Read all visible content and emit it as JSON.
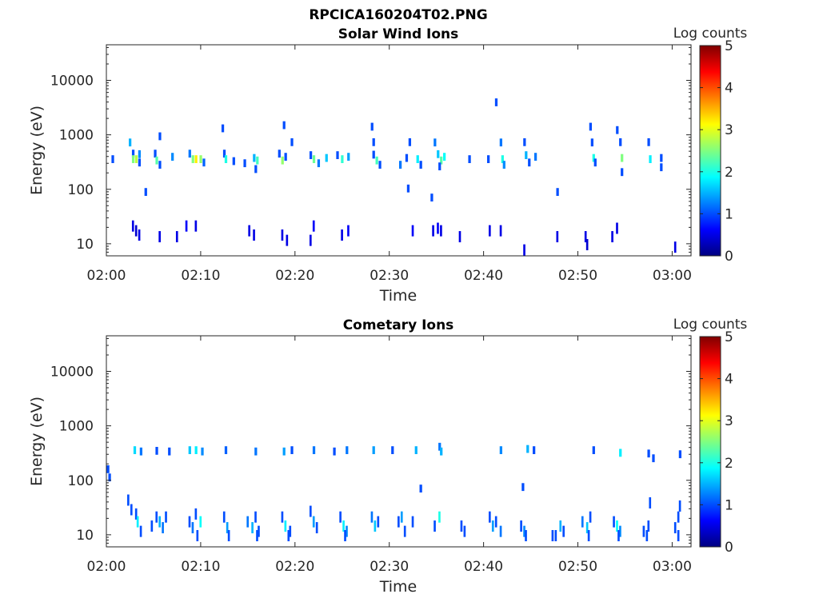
{
  "figure_title": "RPCICA160204T02.PNG",
  "colormap": [
    "#000080",
    "#0000ff",
    "#0080ff",
    "#00ffff",
    "#80ff80",
    "#ffff00",
    "#ff8000",
    "#ff0000",
    "#800000"
  ],
  "chart_data": [
    {
      "type": "heatmap",
      "title": "Solar Wind Ions",
      "xlabel": "Time",
      "ylabel": "Energy (eV)",
      "y_scale": "log",
      "xlim": [
        "02:00",
        "03:02"
      ],
      "ylim": [
        6,
        45000
      ],
      "x_ticks": [
        "02:00",
        "02:10",
        "02:20",
        "02:30",
        "02:40",
        "02:50",
        "03:00"
      ],
      "y_ticks": [
        "10",
        "100",
        "1000",
        "10000"
      ],
      "colorbar": {
        "label": "Log counts",
        "range": [
          0,
          5
        ],
        "ticks": [
          "0",
          "1",
          "2",
          "3",
          "4",
          "5"
        ]
      },
      "cells": [
        [
          "02:00:40",
          380,
          1.0
        ],
        [
          "02:02:30",
          770,
          1.5
        ],
        [
          "02:02:50",
          480,
          1.0
        ],
        [
          "02:02:50",
          380,
          2.5
        ],
        [
          "02:03:10",
          380,
          2.8
        ],
        [
          "02:03:30",
          470,
          1.3
        ],
        [
          "02:03:30",
          330,
          1.0
        ],
        [
          "02:05:10",
          480,
          1.0
        ],
        [
          "02:05:20",
          360,
          2.3
        ],
        [
          "02:05:40",
          300,
          1.0
        ],
        [
          "02:05:40",
          1000,
          1.0
        ],
        [
          "02:07:00",
          420,
          1.3
        ],
        [
          "02:08:50",
          480,
          1.2
        ],
        [
          "02:09:10",
          380,
          2.5
        ],
        [
          "02:09:30",
          380,
          3.2
        ],
        [
          "02:10:00",
          380,
          2.6
        ],
        [
          "02:10:20",
          330,
          1.1
        ],
        [
          "02:12:30",
          480,
          1.0
        ],
        [
          "02:12:40",
          380,
          2.0
        ],
        [
          "02:13:30",
          350,
          1.0
        ],
        [
          "02:14:40",
          320,
          1.0
        ],
        [
          "02:15:40",
          400,
          1.5
        ],
        [
          "02:16:00",
          360,
          2.2
        ],
        [
          "02:15:50",
          250,
          1.0
        ],
        [
          "02:18:20",
          480,
          1.0
        ],
        [
          "02:18:40",
          360,
          2.6
        ],
        [
          "02:19:00",
          420,
          1.0
        ],
        [
          "02:18:50",
          1600,
          1.0
        ],
        [
          "02:19:40",
          780,
          1.0
        ],
        [
          "02:21:40",
          450,
          1.0
        ],
        [
          "02:22:00",
          380,
          2.4
        ],
        [
          "02:22:30",
          320,
          1.2
        ],
        [
          "02:23:20",
          400,
          1.6
        ],
        [
          "02:24:30",
          450,
          1.0
        ],
        [
          "02:25:00",
          380,
          2.1
        ],
        [
          "02:25:40",
          420,
          1.4
        ],
        [
          "02:28:10",
          1500,
          1.0
        ],
        [
          "02:28:20",
          780,
          1.0
        ],
        [
          "02:28:20",
          460,
          1.0
        ],
        [
          "02:28:40",
          360,
          2.2
        ],
        [
          "02:29:00",
          300,
          1.0
        ],
        [
          "02:31:10",
          300,
          1.2
        ],
        [
          "02:31:50",
          400,
          1.0
        ],
        [
          "02:32:10",
          780,
          1.0
        ],
        [
          "02:33:00",
          380,
          1.8
        ],
        [
          "02:33:20",
          300,
          1.0
        ],
        [
          "02:34:50",
          770,
          1.2
        ],
        [
          "02:35:10",
          470,
          1.6
        ],
        [
          "02:35:30",
          360,
          2.3
        ],
        [
          "02:35:50",
          420,
          1.9
        ],
        [
          "02:35:20",
          280,
          1.0
        ],
        [
          "02:38:30",
          380,
          1.0
        ],
        [
          "02:40:30",
          380,
          1.0
        ],
        [
          "02:41:20",
          4200,
          1.0
        ],
        [
          "02:41:50",
          770,
          1.2
        ],
        [
          "02:42:00",
          380,
          2.0
        ],
        [
          "02:42:10",
          300,
          1.3
        ],
        [
          "02:44:20",
          780,
          1.0
        ],
        [
          "02:44:30",
          450,
          1.5
        ],
        [
          "02:44:50",
          330,
          1.0
        ],
        [
          "02:45:30",
          420,
          1.2
        ],
        [
          "02:51:20",
          1500,
          1.0
        ],
        [
          "02:51:30",
          770,
          1.0
        ],
        [
          "02:51:40",
          400,
          2.0
        ],
        [
          "02:51:50",
          330,
          1.0
        ],
        [
          "02:54:10",
          1300,
          1.0
        ],
        [
          "02:54:30",
          780,
          1.0
        ],
        [
          "02:54:40",
          400,
          2.5
        ],
        [
          "02:54:40",
          220,
          1.0
        ],
        [
          "02:57:30",
          780,
          1.0
        ],
        [
          "02:57:40",
          380,
          1.8
        ],
        [
          "02:58:50",
          400,
          1.0
        ],
        [
          "02:58:50",
          270,
          1.0
        ],
        [
          "02:32:00",
          110,
          1.0
        ],
        [
          "02:34:30",
          75,
          1.0
        ],
        [
          "02:04:10",
          95,
          1.0
        ],
        [
          "02:47:50",
          95,
          1.0
        ],
        [
          "02:12:20",
          1400,
          1.0
        ],
        [
          "02:02:50",
          22,
          0.5
        ],
        [
          "02:03:10",
          18,
          0.4
        ],
        [
          "02:03:30",
          15,
          0.5
        ],
        [
          "02:05:40",
          14,
          0.5
        ],
        [
          "02:07:30",
          14,
          0.5
        ],
        [
          "02:08:30",
          22,
          0.6
        ],
        [
          "02:09:30",
          22,
          0.5
        ],
        [
          "02:15:10",
          18,
          0.5
        ],
        [
          "02:15:40",
          15,
          0.5
        ],
        [
          "02:18:40",
          15,
          0.5
        ],
        [
          "02:19:10",
          12,
          0.5
        ],
        [
          "02:21:40",
          12,
          0.5
        ],
        [
          "02:22:00",
          22,
          0.6
        ],
        [
          "02:25:00",
          15,
          0.5
        ],
        [
          "02:25:40",
          18,
          0.6
        ],
        [
          "02:32:30",
          18,
          0.6
        ],
        [
          "02:34:40",
          18,
          0.5
        ],
        [
          "02:35:10",
          20,
          0.6
        ],
        [
          "02:35:30",
          18,
          0.5
        ],
        [
          "02:37:30",
          14,
          0.5
        ],
        [
          "02:40:40",
          18,
          0.5
        ],
        [
          "02:41:50",
          18,
          0.5
        ],
        [
          "02:44:20",
          8,
          0.5
        ],
        [
          "02:47:50",
          14,
          0.5
        ],
        [
          "02:50:50",
          14,
          0.5
        ],
        [
          "02:51:00",
          10,
          0.4
        ],
        [
          "02:53:40",
          14,
          0.5
        ],
        [
          "02:54:10",
          20,
          0.5
        ],
        [
          "03:00:20",
          9,
          0.5
        ]
      ]
    },
    {
      "type": "heatmap",
      "title": "Cometary Ions",
      "xlabel": "Time",
      "ylabel": "Energy (eV)",
      "y_scale": "log",
      "xlim": [
        "02:00",
        "03:02"
      ],
      "ylim": [
        6,
        45000
      ],
      "x_ticks": [
        "02:00",
        "02:10",
        "02:20",
        "02:30",
        "02:40",
        "02:50",
        "03:00"
      ],
      "y_ticks": [
        "10",
        "100",
        "1000",
        "10000"
      ],
      "colorbar": {
        "label": "Log counts",
        "range": [
          0,
          5
        ],
        "ticks": [
          "0",
          "1",
          "2",
          "3",
          "4",
          "5"
        ]
      },
      "cells": [
        [
          "02:03:00",
          380,
          1.7
        ],
        [
          "02:03:40",
          360,
          1.2
        ],
        [
          "02:05:20",
          370,
          1.0
        ],
        [
          "02:06:40",
          360,
          1.0
        ],
        [
          "02:08:50",
          380,
          1.6
        ],
        [
          "02:09:30",
          380,
          1.8
        ],
        [
          "02:10:10",
          360,
          1.3
        ],
        [
          "02:12:40",
          380,
          1.1
        ],
        [
          "02:15:50",
          360,
          1.2
        ],
        [
          "02:18:50",
          360,
          1.4
        ],
        [
          "02:19:40",
          380,
          1.0
        ],
        [
          "02:22:00",
          380,
          1.2
        ],
        [
          "02:24:10",
          360,
          1.0
        ],
        [
          "02:25:30",
          380,
          1.2
        ],
        [
          "02:28:20",
          380,
          1.4
        ],
        [
          "02:30:20",
          380,
          1.0
        ],
        [
          "02:32:50",
          380,
          1.5
        ],
        [
          "02:35:20",
          440,
          1.2
        ],
        [
          "02:35:30",
          360,
          1.5
        ],
        [
          "02:41:50",
          380,
          1.3
        ],
        [
          "02:44:40",
          400,
          1.5
        ],
        [
          "02:45:20",
          380,
          1.0
        ],
        [
          "02:51:40",
          380,
          1.0
        ],
        [
          "02:54:30",
          340,
          1.8
        ],
        [
          "02:57:30",
          330,
          1.0
        ],
        [
          "02:58:00",
          270,
          1.0
        ],
        [
          "03:00:50",
          320,
          1.0
        ],
        [
          "02:00:10",
          170,
          1.0
        ],
        [
          "02:00:20",
          120,
          1.0
        ],
        [
          "02:33:20",
          75,
          1.0
        ],
        [
          "02:02:20",
          45,
          1.0
        ],
        [
          "02:02:40",
          30,
          1.0
        ],
        [
          "02:03:10",
          25,
          1.0
        ],
        [
          "02:03:20",
          18,
          1.8
        ],
        [
          "02:03:40",
          12,
          1.0
        ],
        [
          "02:05:20",
          22,
          1.0
        ],
        [
          "02:05:40",
          18,
          1.5
        ],
        [
          "02:06:00",
          14,
          1.2
        ],
        [
          "02:06:20",
          22,
          1.0
        ],
        [
          "02:08:50",
          18,
          1.0
        ],
        [
          "02:09:10",
          14,
          1.2
        ],
        [
          "02:09:30",
          25,
          1.0
        ],
        [
          "02:10:00",
          18,
          1.9
        ],
        [
          "02:12:30",
          22,
          1.0
        ],
        [
          "02:12:50",
          14,
          1.4
        ],
        [
          "02:15:00",
          18,
          1.2
        ],
        [
          "02:15:30",
          14,
          1.5
        ],
        [
          "02:15:50",
          22,
          1.0
        ],
        [
          "02:16:10",
          12,
          1.0
        ],
        [
          "02:18:40",
          22,
          1.0
        ],
        [
          "02:19:00",
          15,
          1.8
        ],
        [
          "02:19:30",
          12,
          1.0
        ],
        [
          "02:21:40",
          28,
          1.0
        ],
        [
          "02:22:00",
          18,
          1.4
        ],
        [
          "02:22:20",
          14,
          1.0
        ],
        [
          "02:24:50",
          22,
          1.0
        ],
        [
          "02:25:10",
          15,
          1.8
        ],
        [
          "02:25:30",
          12,
          1.3
        ],
        [
          "02:28:10",
          22,
          1.2
        ],
        [
          "02:28:30",
          15,
          1.6
        ],
        [
          "02:28:50",
          18,
          1.0
        ],
        [
          "02:31:00",
          18,
          1.0
        ],
        [
          "02:31:20",
          22,
          1.4
        ],
        [
          "02:31:40",
          12,
          1.0
        ],
        [
          "02:32:30",
          18,
          1.0
        ],
        [
          "02:34:50",
          15,
          1.0
        ],
        [
          "02:35:20",
          22,
          2.0
        ],
        [
          "02:37:40",
          15,
          1.0
        ],
        [
          "02:38:00",
          12,
          1.0
        ],
        [
          "02:40:40",
          22,
          1.0
        ],
        [
          "02:41:00",
          15,
          1.4
        ],
        [
          "02:41:20",
          18,
          1.0
        ],
        [
          "02:41:50",
          12,
          1.2
        ],
        [
          "02:44:00",
          15,
          1.0
        ],
        [
          "02:44:20",
          12,
          1.3
        ],
        [
          "02:47:40",
          10,
          1.0
        ],
        [
          "02:48:10",
          15,
          1.5
        ],
        [
          "02:48:30",
          12,
          1.0
        ],
        [
          "02:50:30",
          18,
          1.2
        ],
        [
          "02:51:00",
          14,
          1.6
        ],
        [
          "02:51:20",
          22,
          1.0
        ],
        [
          "02:53:50",
          18,
          1.0
        ],
        [
          "02:54:10",
          15,
          1.9
        ],
        [
          "02:54:30",
          12,
          1.3
        ],
        [
          "02:57:00",
          12,
          1.0
        ],
        [
          "02:57:30",
          15,
          1.0
        ],
        [
          "02:57:40",
          40,
          1.0
        ],
        [
          "03:00:20",
          14,
          1.0
        ],
        [
          "03:00:40",
          22,
          1.0
        ],
        [
          "03:00:50",
          35,
          1.0
        ],
        [
          "02:04:50",
          15,
          1.0
        ],
        [
          "02:09:40",
          10,
          1.0
        ],
        [
          "02:13:00",
          10,
          1.0
        ],
        [
          "02:16:00",
          10,
          1.0
        ],
        [
          "02:19:20",
          10,
          1.0
        ],
        [
          "02:25:20",
          10,
          1.0
        ],
        [
          "02:44:30",
          10,
          1.0
        ],
        [
          "02:47:20",
          10,
          1.0
        ],
        [
          "02:51:10",
          10,
          1.0
        ],
        [
          "02:54:20",
          10,
          1.0
        ],
        [
          "02:57:20",
          10,
          1.0
        ],
        [
          "03:00:40",
          10,
          1.0
        ],
        [
          "02:44:10",
          80,
          1.0
        ]
      ]
    }
  ]
}
